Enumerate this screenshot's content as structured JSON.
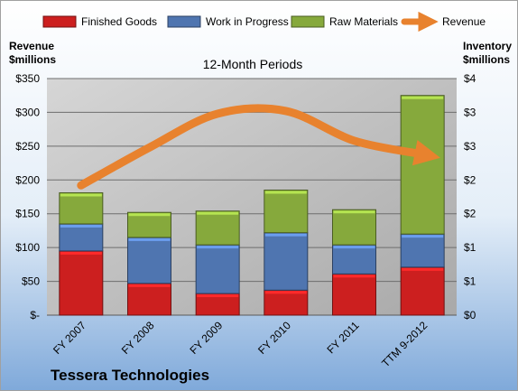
{
  "chart_data": {
    "type": "bar",
    "subtitle": "12-Month Periods",
    "company": "Tessera Technologies",
    "categories": [
      "FY 2007",
      "FY 2008",
      "FY 2009",
      "FY 2010",
      "FY 2011",
      "TTM 9-2012"
    ],
    "series": [
      {
        "name": "Finished Goods",
        "color": "#CC1F1F",
        "values": [
          0.95,
          0.47,
          0.32,
          0.37,
          0.61,
          0.71
        ]
      },
      {
        "name": "Work in Progress",
        "color": "#4F75B0",
        "values": [
          0.4,
          0.68,
          0.72,
          0.85,
          0.43,
          0.49
        ]
      },
      {
        "name": "Raw Materials",
        "color": "#86A93C",
        "values": [
          0.46,
          0.37,
          0.5,
          0.63,
          0.52,
          2.05
        ]
      }
    ],
    "stack_totals_inventory_millions": [
      1.81,
      1.52,
      1.54,
      1.85,
      1.56,
      3.25
    ],
    "line": {
      "name": "Revenue",
      "color": "#E8822E",
      "values": [
        192,
        248,
        298,
        302,
        258,
        238
      ]
    },
    "left_axis": {
      "label_line1": "Revenue",
      "label_line2": "$millions",
      "ylim": [
        0,
        350
      ],
      "ticks": [
        "$-",
        "$50",
        "$100",
        "$150",
        "$200",
        "$250",
        "$300",
        "$350"
      ]
    },
    "right_axis": {
      "label_line1": "Inventory",
      "label_line2": "$millions",
      "ylim": [
        0,
        3.5
      ],
      "ticks": [
        "$0",
        "$1",
        "$1",
        "$2",
        "$2",
        "$3",
        "$3",
        "$4"
      ]
    },
    "grid": true,
    "legend_position": "top"
  }
}
